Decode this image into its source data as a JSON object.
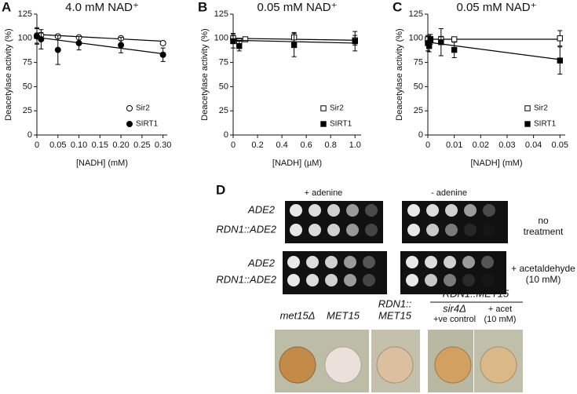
{
  "chart_data": [
    {
      "type": "line",
      "label": "A",
      "title": "4.0 mM NAD⁺",
      "xlabel": "[NADH] (mM)",
      "ylabel": "Deacetylase activity (%)",
      "xlim": [
        0,
        0.31
      ],
      "xticks": [
        0,
        0.05,
        {
          "value": 0.1,
          "label": "0.10"
        },
        0.15,
        {
          "value": 0.2,
          "label": "0.20"
        },
        0.25,
        {
          "value": 0.3,
          "label": "0.30"
        }
      ],
      "ylim": [
        0,
        125
      ],
      "yticks": [
        0,
        25,
        50,
        75,
        100,
        125
      ],
      "series": [
        {
          "name": "Sir2",
          "marker": "circle",
          "filled": false,
          "color": "#000000",
          "x": [
            0,
            0.01,
            0.05,
            0.1,
            0.2,
            0.3
          ],
          "values": [
            103,
            103,
            102,
            101,
            100,
            95
          ],
          "errors": [
            8,
            3,
            2,
            1,
            1,
            2
          ],
          "fit": [
            104,
            97
          ]
        },
        {
          "name": "SIRT1",
          "marker": "circle",
          "filled": true,
          "color": "#000000",
          "x": [
            0,
            0.01,
            0.05,
            0.1,
            0.2,
            0.3
          ],
          "values": [
            102,
            99,
            88,
            95,
            93,
            83
          ],
          "errors": [
            8,
            10,
            15,
            7,
            8,
            7
          ],
          "fit": [
            101,
            84
          ]
        }
      ]
    },
    {
      "type": "line",
      "label": "B",
      "title": "0.05 mM NAD⁺",
      "xlabel": "[NADH] (µM)",
      "ylabel": "Deacetylase activity (%)",
      "xlim": [
        0,
        1.05
      ],
      "xticks": [
        0,
        0.2,
        0.4,
        0.6,
        0.8,
        {
          "value": 1,
          "label": "1.0"
        }
      ],
      "ylim": [
        0,
        125
      ],
      "yticks": [
        0,
        25,
        50,
        75,
        100,
        125
      ],
      "series": [
        {
          "name": "Sir2",
          "marker": "square",
          "filled": false,
          "color": "#000000",
          "x": [
            0,
            0.05,
            0.1,
            0.5,
            1
          ],
          "values": [
            100,
            97,
            99,
            101,
            98
          ],
          "errors": [
            5,
            3,
            1,
            5,
            5
          ],
          "fit": [
            100,
            98
          ]
        },
        {
          "name": "SIRT1",
          "marker": "square",
          "filled": true,
          "color": "#000000",
          "x": [
            0,
            0.05,
            0.5,
            1
          ],
          "values": [
            97,
            92,
            93,
            97
          ],
          "errors": [
            7,
            5,
            12,
            10
          ],
          "fit": [
            98,
            95
          ]
        }
      ]
    },
    {
      "type": "line",
      "label": "C",
      "title": "0.05 mM NAD⁺",
      "xlabel": "[NADH] (mM)",
      "ylabel": "Deacetylase activity (%)",
      "xlim": [
        0,
        0.052
      ],
      "xticks": [
        0,
        0.01,
        0.02,
        0.03,
        0.04,
        0.05
      ],
      "ylim": [
        0,
        125
      ],
      "yticks": [
        0,
        25,
        50,
        75,
        100,
        125
      ],
      "series": [
        {
          "name": "Sir2",
          "marker": "square",
          "filled": false,
          "color": "#000000",
          "x": [
            0,
            0.001,
            0.005,
            0.01,
            0.05
          ],
          "values": [
            99,
            99,
            99,
            99,
            100
          ],
          "errors": [
            3,
            3,
            3,
            2,
            8
          ],
          "fit": [
            99,
            99
          ]
        },
        {
          "name": "SIRT1",
          "marker": "square",
          "filled": true,
          "color": "#000000",
          "x": [
            0,
            0.0005,
            0.001,
            0.005,
            0.01,
            0.05
          ],
          "values": [
            95,
            92,
            99,
            96,
            88,
            77
          ],
          "errors": [
            8,
            6,
            5,
            14,
            8,
            14
          ],
          "fit": [
            96,
            78
          ]
        }
      ]
    }
  ],
  "panel_d": {
    "label": "D",
    "conditions": [
      "+ adenine",
      "- adenine"
    ],
    "plates": [
      {
        "strains": [
          "ADE2",
          "RDN1::ADE2"
        ],
        "treatment": [
          "no",
          "treatment"
        ]
      },
      {
        "strains": [
          "ADE2",
          "RDN1::ADE2"
        ],
        "treatment": [
          "+ acetaldehyde",
          "(10 mM)"
        ]
      }
    ],
    "group": "RDN1::MET15",
    "wells": [
      {
        "label": [
          "met15Δ"
        ]
      },
      {
        "label": [
          "MET15"
        ]
      },
      {
        "label": [
          "RDN1::",
          "MET15"
        ]
      },
      {
        "label": [
          "sir4Δ",
          "+ve control"
        ]
      },
      {
        "label": [
          "+ acet",
          "(10 mM)"
        ]
      }
    ]
  }
}
